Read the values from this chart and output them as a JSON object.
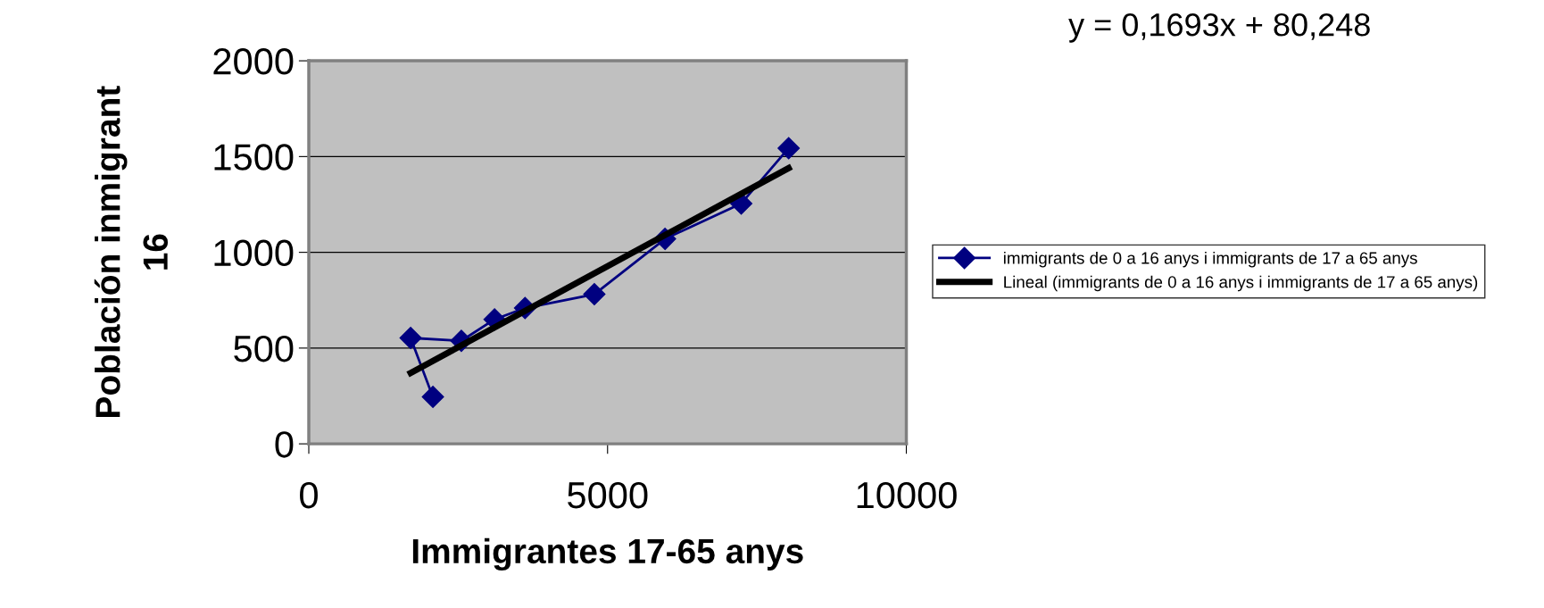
{
  "chart_data": {
    "type": "line",
    "xlabel": "Immigrantes 17-65 anys",
    "ylabel": "Población inmigrant\n16",
    "annotations": [
      "y = 0,1693x + 80,248"
    ],
    "series": [
      {
        "name": "immigrants de 0 a 16 anys i immigrants de 17 a 65 anys",
        "color": "#000080",
        "marker": "diamond",
        "x": [
          2077,
          1704,
          2553,
          3109,
          3619,
          4779,
          5961,
          7237,
          8031
        ],
        "values": [
          245,
          553,
          538,
          650,
          709,
          781,
          1070,
          1255,
          1544
        ]
      },
      {
        "name": "Lineal (immigrants de 0 a 16 anys i immigrants de 17 a 65 anys)",
        "color": "#000000",
        "marker": "none",
        "x": [
          1704,
          8031
        ],
        "values": [
          370,
          1440
        ]
      }
    ],
    "xlim": [
      0,
      10000
    ],
    "xticks": [
      0,
      5000,
      10000
    ],
    "ylim": [
      0,
      2000
    ],
    "yticks": [
      0,
      500,
      1000,
      1500,
      2000
    ],
    "grid": "y",
    "legend": "right"
  }
}
